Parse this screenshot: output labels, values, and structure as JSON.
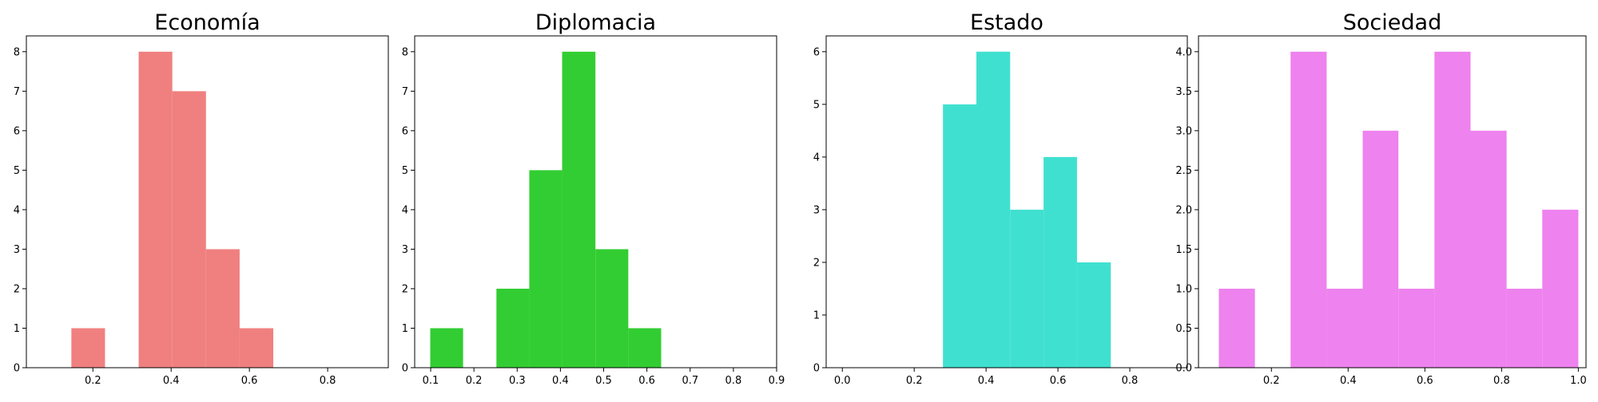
{
  "chart_data": [
    {
      "type": "bar",
      "title": "Economía",
      "color": "#F08080",
      "xlim": [
        0.03,
        0.955
      ],
      "ylim": [
        0,
        8.4
      ],
      "xticks": [
        0.2,
        0.4,
        0.6,
        0.8
      ],
      "xtick_labels": [
        "0.2",
        "0.4",
        "0.6",
        "0.8"
      ],
      "yticks": [
        0,
        1,
        2,
        3,
        4,
        5,
        6,
        7,
        8
      ],
      "ytick_labels": [
        "0",
        "1",
        "2",
        "3",
        "4",
        "5",
        "6",
        "7",
        "8"
      ],
      "bins": [
        {
          "x0": 0.145,
          "x1": 0.231,
          "value": 1
        },
        {
          "x0": 0.317,
          "x1": 0.403,
          "value": 8
        },
        {
          "x0": 0.403,
          "x1": 0.489,
          "value": 7
        },
        {
          "x0": 0.489,
          "x1": 0.575,
          "value": 3
        },
        {
          "x0": 0.575,
          "x1": 0.661,
          "value": 1
        }
      ]
    },
    {
      "type": "bar",
      "title": "Diplomacia",
      "color": "#32CD32",
      "xlim": [
        0.063,
        0.9
      ],
      "ylim": [
        0,
        8.4
      ],
      "xticks": [
        0.1,
        0.2,
        0.3,
        0.4,
        0.5,
        0.6,
        0.7,
        0.8,
        0.9
      ],
      "xtick_labels": [
        "0.1",
        "0.2",
        "0.3",
        "0.4",
        "0.5",
        "0.6",
        "0.7",
        "0.8",
        "0.9"
      ],
      "yticks": [
        0,
        1,
        2,
        3,
        4,
        5,
        6,
        7,
        8
      ],
      "ytick_labels": [
        "0",
        "1",
        "2",
        "3",
        "4",
        "5",
        "6",
        "7",
        "8"
      ],
      "bins": [
        {
          "x0": 0.099,
          "x1": 0.175,
          "value": 1
        },
        {
          "x0": 0.252,
          "x1": 0.328,
          "value": 2
        },
        {
          "x0": 0.328,
          "x1": 0.404,
          "value": 5
        },
        {
          "x0": 0.404,
          "x1": 0.481,
          "value": 8
        },
        {
          "x0": 0.481,
          "x1": 0.557,
          "value": 3
        },
        {
          "x0": 0.557,
          "x1": 0.633,
          "value": 1
        }
      ]
    },
    {
      "type": "bar",
      "title": "Estado",
      "color": "#40E0D0",
      "xlim": [
        -0.045,
        0.96
      ],
      "ylim": [
        0,
        6.3
      ],
      "xticks": [
        0.0,
        0.2,
        0.4,
        0.6,
        0.8
      ],
      "xtick_labels": [
        "0.0",
        "0.2",
        "0.4",
        "0.6",
        "0.8"
      ],
      "yticks": [
        0,
        1,
        2,
        3,
        4,
        5,
        6
      ],
      "ytick_labels": [
        "0",
        "1",
        "2",
        "3",
        "4",
        "5",
        "6"
      ],
      "bins": [
        {
          "x0": 0.28,
          "x1": 0.373,
          "value": 5
        },
        {
          "x0": 0.373,
          "x1": 0.467,
          "value": 6
        },
        {
          "x0": 0.467,
          "x1": 0.56,
          "value": 3
        },
        {
          "x0": 0.56,
          "x1": 0.653,
          "value": 4
        },
        {
          "x0": 0.653,
          "x1": 0.747,
          "value": 2
        }
      ]
    },
    {
      "type": "bar",
      "title": "Sociedad",
      "color": "#EE82EE",
      "xlim": [
        0.01,
        1.02
      ],
      "ylim": [
        0,
        4.2
      ],
      "xticks": [
        0.2,
        0.4,
        0.6,
        0.8,
        1.0
      ],
      "xtick_labels": [
        "0.2",
        "0.4",
        "0.6",
        "0.8",
        "1.0"
      ],
      "yticks": [
        0,
        0.5,
        1,
        1.5,
        2,
        2.5,
        3,
        3.5,
        4
      ],
      "ytick_labels": [
        "0.0",
        "0.5",
        "1.0",
        "1.5",
        "2.0",
        "2.5",
        "3.0",
        "3.5",
        "4.0"
      ],
      "bins": [
        {
          "x0": 0.063,
          "x1": 0.157,
          "value": 1
        },
        {
          "x0": 0.25,
          "x1": 0.344,
          "value": 4
        },
        {
          "x0": 0.344,
          "x1": 0.438,
          "value": 1
        },
        {
          "x0": 0.438,
          "x1": 0.531,
          "value": 3
        },
        {
          "x0": 0.531,
          "x1": 0.625,
          "value": 1
        },
        {
          "x0": 0.625,
          "x1": 0.719,
          "value": 4
        },
        {
          "x0": 0.719,
          "x1": 0.813,
          "value": 3
        },
        {
          "x0": 0.813,
          "x1": 0.906,
          "value": 1
        },
        {
          "x0": 0.906,
          "x1": 1.0,
          "value": 2
        }
      ]
    }
  ]
}
